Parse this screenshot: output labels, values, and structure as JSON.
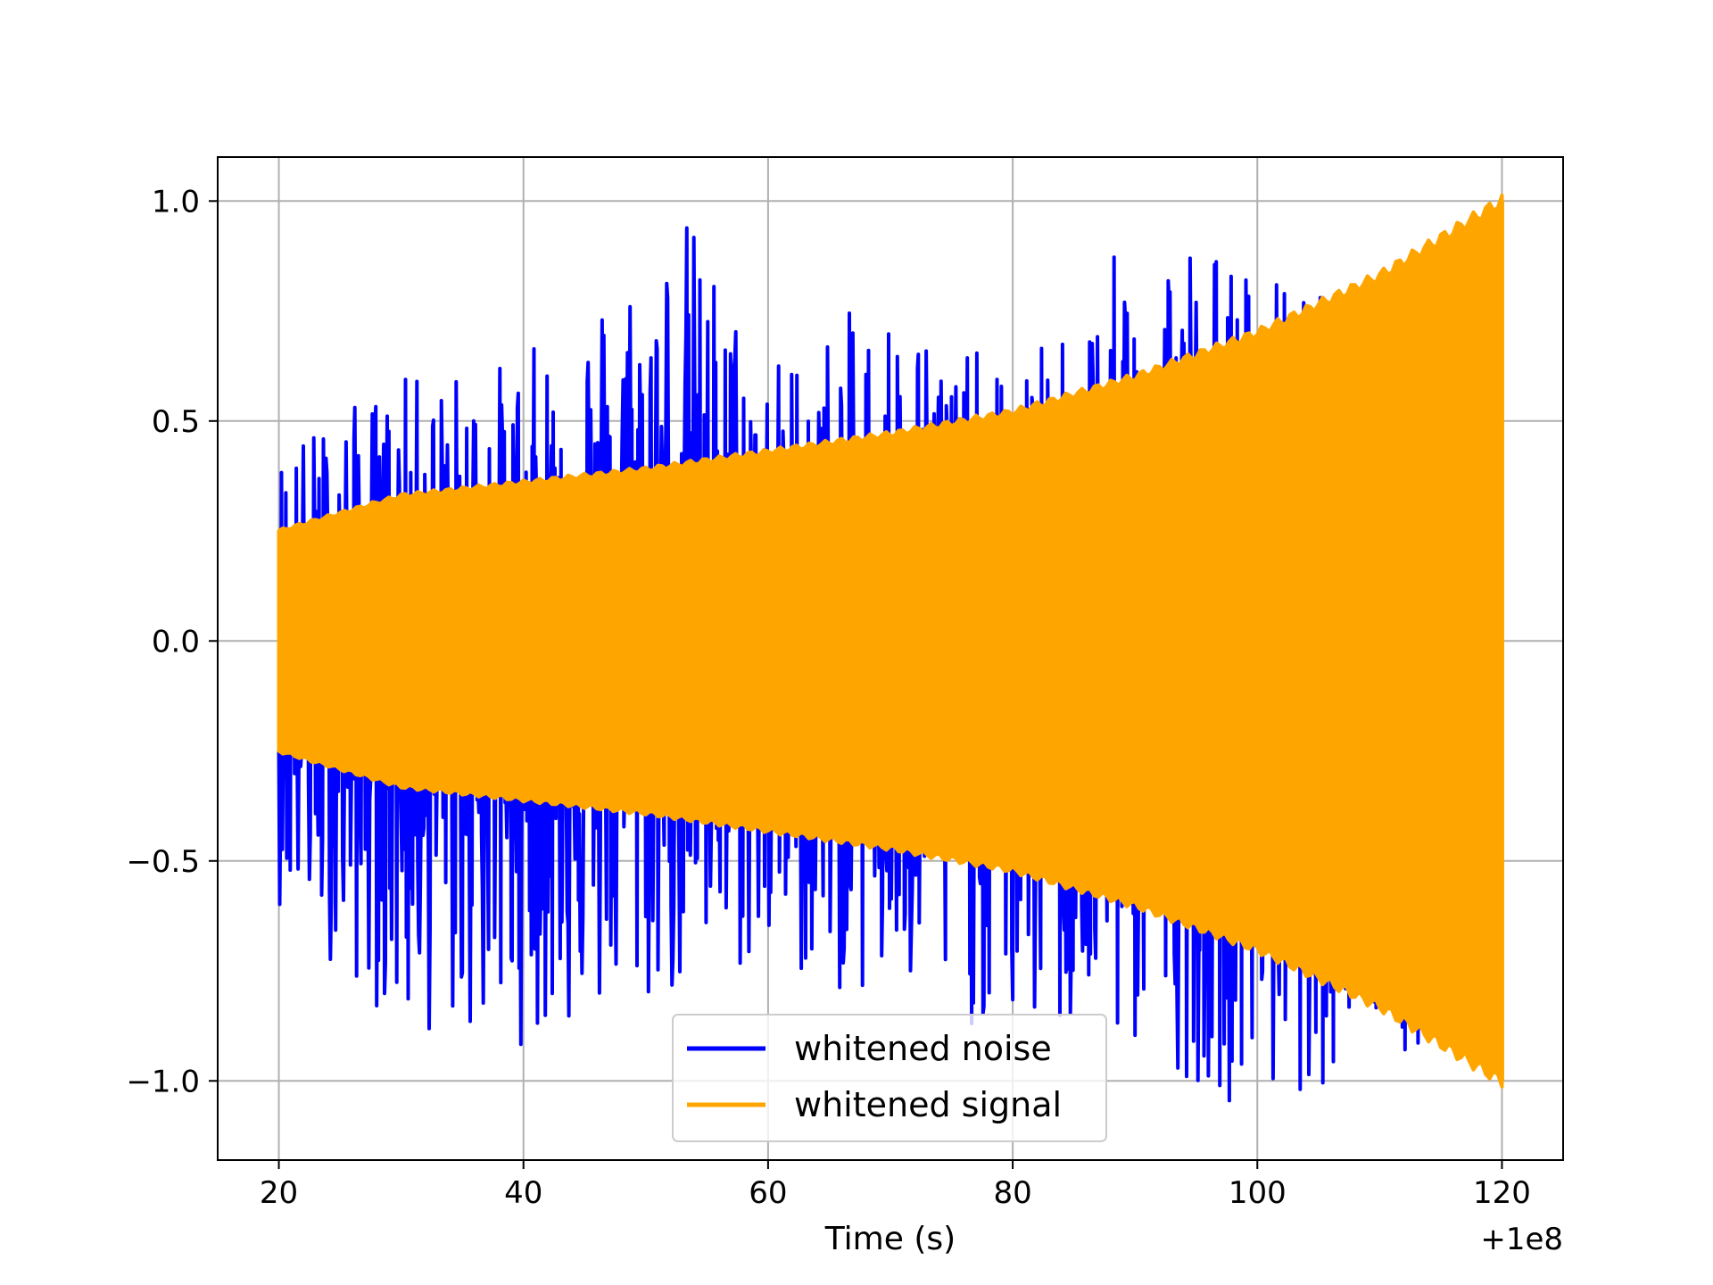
{
  "chart_data": {
    "type": "line",
    "title": "",
    "xlabel": "Time (s)",
    "ylabel": "",
    "x_offset_label": "+1e8",
    "xlim": [
      15,
      125
    ],
    "ylim": [
      -1.18,
      1.1
    ],
    "xticks": [
      20,
      40,
      60,
      80,
      100,
      120
    ],
    "xtick_labels": [
      "20",
      "40",
      "60",
      "80",
      "100",
      "120"
    ],
    "yticks": [
      -1.0,
      -0.5,
      0.0,
      0.5,
      1.0
    ],
    "ytick_labels": [
      "−1.0",
      "−0.5",
      "0.0",
      "0.5",
      "1.0"
    ],
    "grid": true,
    "legend_position": "lower-center",
    "series": [
      {
        "name": "whitened noise",
        "color": "#0000ff",
        "x_range": [
          20,
          120
        ],
        "envelope_upper": [
          [
            20,
            0.45
          ],
          [
            30,
            0.6
          ],
          [
            40,
            0.65
          ],
          [
            53,
            1.0
          ],
          [
            60,
            0.65
          ],
          [
            70,
            0.8
          ],
          [
            80,
            0.6
          ],
          [
            92,
            1.0
          ],
          [
            100,
            0.85
          ],
          [
            110,
            0.75
          ],
          [
            120,
            0.3
          ]
        ],
        "envelope_lower": [
          [
            20,
            -0.6
          ],
          [
            30,
            -0.9
          ],
          [
            40,
            -0.92
          ],
          [
            50,
            -0.85
          ],
          [
            60,
            -0.75
          ],
          [
            70,
            -0.85
          ],
          [
            80,
            -0.9
          ],
          [
            92,
            -0.96
          ],
          [
            100,
            -1.08
          ],
          [
            110,
            -0.95
          ],
          [
            113,
            -0.98
          ],
          [
            120,
            -0.3
          ]
        ]
      },
      {
        "name": "whitened signal",
        "color": "#ffa500",
        "x_range": [
          20,
          120
        ],
        "envelope": [
          [
            20,
            0.25
          ],
          [
            30,
            0.33
          ],
          [
            40,
            0.36
          ],
          [
            50,
            0.39
          ],
          [
            60,
            0.43
          ],
          [
            70,
            0.47
          ],
          [
            80,
            0.52
          ],
          [
            90,
            0.6
          ],
          [
            100,
            0.7
          ],
          [
            110,
            0.83
          ],
          [
            120,
            1.0
          ]
        ]
      }
    ]
  }
}
